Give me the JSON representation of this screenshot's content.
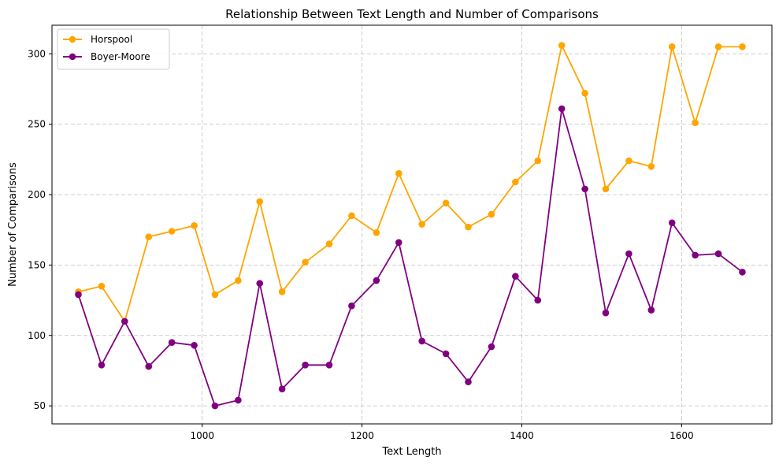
{
  "chart_data": {
    "type": "line",
    "title": "Relationship Between Text Length and Number of Comparisons",
    "xlabel": "Text Length",
    "ylabel": "Number of Comparisons",
    "xlim": [
      812,
      1713
    ],
    "ylim": [
      37.2,
      320.3
    ],
    "xticks": [
      1000,
      1200,
      1400,
      1600
    ],
    "yticks": [
      50,
      100,
      150,
      200,
      250,
      300
    ],
    "grid": true,
    "legend_position": "top-left",
    "x": [
      845,
      874,
      903,
      933,
      962,
      990,
      1016,
      1045,
      1072,
      1100,
      1129,
      1159,
      1187,
      1218,
      1246,
      1275,
      1305,
      1333,
      1362,
      1392,
      1420,
      1450,
      1479,
      1505,
      1534,
      1562,
      1588,
      1617,
      1646,
      1676
    ],
    "series": [
      {
        "name": "Horspool",
        "color": "#ffa500",
        "values": [
          131,
          135,
          110,
          170,
          174,
          178,
          129,
          139,
          195,
          131,
          152,
          165,
          185,
          173,
          215,
          179,
          194,
          177,
          186,
          209,
          224,
          306,
          272,
          204,
          224,
          220,
          305,
          251,
          305,
          305
        ]
      },
      {
        "name": "Boyer-Moore",
        "color": "#800080",
        "values": [
          129,
          79,
          110,
          78,
          95,
          93,
          50,
          54,
          137,
          62,
          79,
          79,
          121,
          139,
          166,
          96,
          87,
          67,
          92,
          142,
          125,
          261,
          204,
          116,
          158,
          118,
          180,
          157,
          158,
          145
        ]
      }
    ]
  }
}
